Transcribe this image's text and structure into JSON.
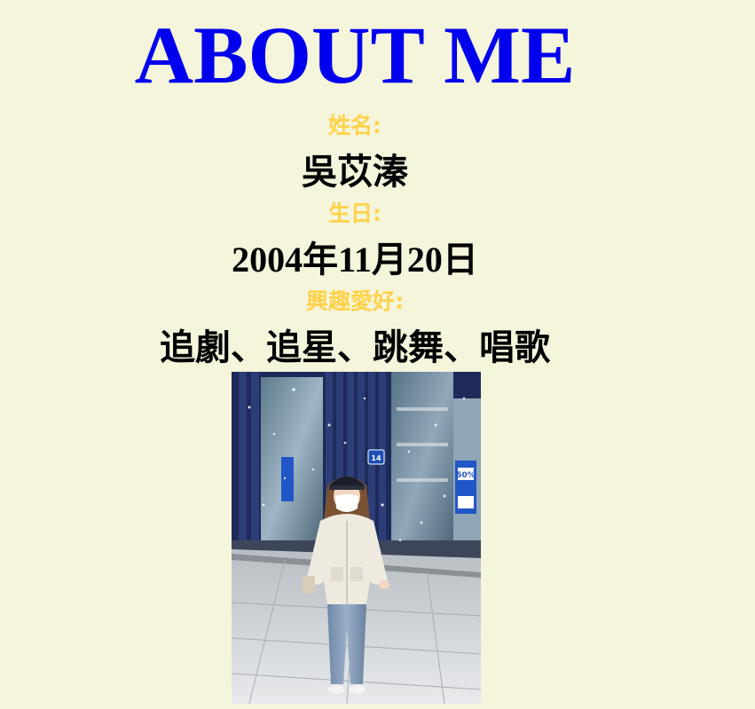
{
  "page": {
    "title": "ABOUT ME"
  },
  "profile": {
    "name_label": "姓名:",
    "name_value": "吳苡溱",
    "birthday_label": "生日:",
    "birthday_value": "2004年11月20日",
    "hobbies_label": "興趣愛好:",
    "hobbies_value": "追劇、追星、跳舞、唱歌"
  },
  "photo": {
    "sign_number": "14",
    "sale_badge": "50%"
  },
  "colors": {
    "background": "#f5f5dc",
    "title": "#0000ee",
    "label": "#ffd24a",
    "value": "#000000"
  }
}
